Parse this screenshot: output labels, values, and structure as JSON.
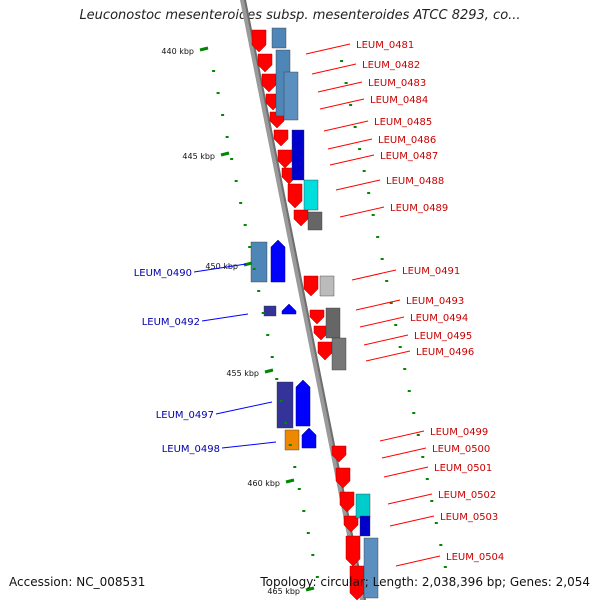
{
  "title": "Leuconostoc mesenteroides subsp. mesenteroides ATCC 8293, co...",
  "footer": {
    "accession": "Accession: NC_008531",
    "stats": "Topology: circular; Length: 2,038,396 bp; Genes: 2,054"
  },
  "colors": {
    "forward_gene": "#ff0000",
    "reverse_gene": "#0000ff",
    "reverse_label": "#0000aa",
    "forward_label": "#cc0000",
    "tick": "#008800",
    "backbone": "#999999"
  },
  "scale_ticks": [
    "440 kbp",
    "445 kbp",
    "450 kbp",
    "455 kbp",
    "460 kbp",
    "465 kbp"
  ],
  "forward_labels": [
    "LEUM_0481",
    "LEUM_0482",
    "LEUM_0483",
    "LEUM_0484",
    "LEUM_0485",
    "LEUM_0486",
    "LEUM_0487",
    "LEUM_0488",
    "LEUM_0489",
    "LEUM_0491",
    "LEUM_0493",
    "LEUM_0494",
    "LEUM_0495",
    "LEUM_0496",
    "LEUM_0499",
    "LEUM_0500",
    "LEUM_0501",
    "LEUM_0502",
    "LEUM_0503",
    "LEUM_0504"
  ],
  "reverse_labels": [
    "LEUM_0490",
    "LEUM_0492",
    "LEUM_0497",
    "LEUM_0498"
  ]
}
